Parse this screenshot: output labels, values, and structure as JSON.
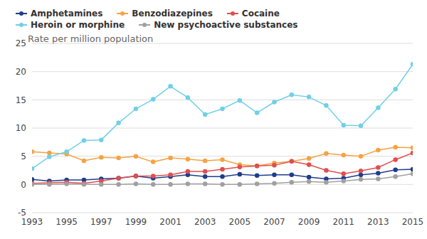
{
  "chart_data": {
    "type": "line",
    "y_label": "Rate per million population",
    "x": [
      1993,
      1994,
      1995,
      1996,
      1997,
      1998,
      1999,
      2000,
      2001,
      2002,
      2003,
      2004,
      2005,
      2006,
      2007,
      2008,
      2009,
      2010,
      2011,
      2012,
      2013,
      2014,
      2015
    ],
    "xlim": [
      1993,
      2015
    ],
    "xticks": [
      1993,
      1995,
      1997,
      1999,
      2001,
      2003,
      2005,
      2007,
      2009,
      2011,
      2013,
      2015
    ],
    "ylim": [
      -5,
      25
    ],
    "yticks": [
      -5,
      0,
      5,
      10,
      15,
      20,
      25
    ],
    "grid": true,
    "legend": "top-left",
    "marker": "circle",
    "series": [
      {
        "name": "Amphetamines",
        "color": "#1f3d8c",
        "values": [
          0.9,
          0.6,
          0.8,
          0.8,
          1.0,
          1.1,
          1.5,
          1.1,
          1.4,
          1.7,
          1.4,
          1.4,
          1.8,
          1.6,
          1.7,
          1.7,
          1.3,
          1.0,
          1.1,
          1.7,
          2.0,
          2.6,
          2.7
        ]
      },
      {
        "name": "Benzodiazepines",
        "color": "#f5a342",
        "values": [
          5.8,
          5.6,
          5.4,
          4.2,
          4.8,
          4.7,
          5.0,
          4.0,
          4.7,
          4.5,
          4.2,
          4.4,
          3.5,
          3.3,
          3.8,
          4.1,
          4.6,
          5.5,
          5.2,
          5.0,
          6.1,
          6.6,
          6.5
        ]
      },
      {
        "name": "Cocaine",
        "color": "#e04e4e",
        "values": [
          0.2,
          0.3,
          0.4,
          0.2,
          0.6,
          1.1,
          1.5,
          1.5,
          1.7,
          2.3,
          2.3,
          2.7,
          3.1,
          3.3,
          3.4,
          4.1,
          3.5,
          2.5,
          1.9,
          2.4,
          3.0,
          4.4,
          5.6
        ]
      },
      {
        "name": "Heroin or morphine",
        "color": "#6fd0e6",
        "values": [
          2.8,
          4.9,
          5.8,
          7.8,
          7.9,
          10.9,
          13.4,
          15.1,
          17.4,
          15.4,
          12.4,
          13.4,
          14.9,
          12.7,
          14.6,
          15.9,
          15.5,
          14.0,
          10.5,
          10.4,
          13.6,
          16.9,
          21.3
        ]
      },
      {
        "name": "New psychoactive substances",
        "color": "#a0a0a0",
        "values": [
          0.0,
          0.0,
          0.1,
          0.0,
          0.0,
          0.0,
          0.1,
          0.0,
          0.0,
          0.1,
          0.1,
          0.0,
          0.0,
          0.1,
          0.2,
          0.4,
          0.5,
          0.4,
          0.6,
          0.9,
          1.0,
          1.4,
          1.9
        ]
      }
    ]
  }
}
